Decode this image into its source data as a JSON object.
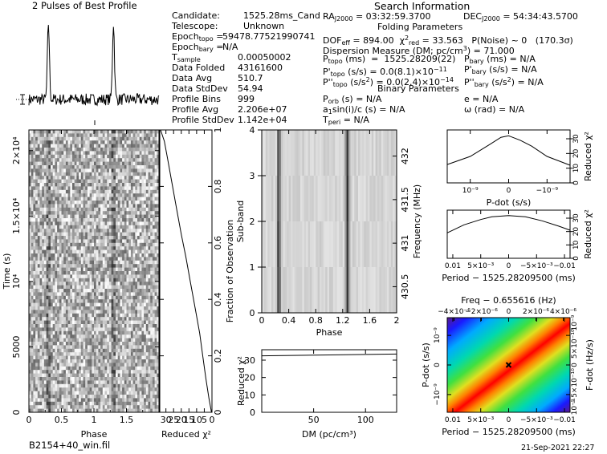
{
  "top_left_title": "2 Pulses of Best Profile",
  "candidate_info": {
    "lines": [
      [
        "Candidate:",
        "1525.28ms_Cand"
      ],
      [
        "Telescope:",
        "Unknown"
      ],
      [
        "Epoch_topo =",
        "59478.77521990741"
      ],
      [
        "Epoch_bary =",
        "N/A"
      ],
      [
        "T_sample",
        "0.00050002"
      ],
      [
        "Data Folded",
        "43161600"
      ],
      [
        "Data Avg",
        "510.7"
      ],
      [
        "Data StdDev",
        "54.94"
      ],
      [
        "Profile Bins",
        "999"
      ],
      [
        "Profile Avg",
        "2.206e+07"
      ],
      [
        "Profile StdDev",
        "1.142e+04"
      ]
    ]
  },
  "search": {
    "title": "Search Information",
    "ra": "RA_J2000 = 03:32:59.3700",
    "dec": "DEC_J2000 = 54:34:43.5700",
    "folding_title": "Folding Parameters",
    "dof_line": "DOF_eff = 894.00  χ²_red = 33.563   P(Noise) ~ 0   (170.3σ)",
    "dm_line": "Dispersion Measure (DM; pc/cm³) = 71.000",
    "p_topo": "P_topo (ms) = 1525.28209(22)",
    "pd_topo": "P'_topo (s/s) = 0.0(8.1)×10⁻¹¹",
    "pdd_topo": "P''_topo (s/s²) = 0.0(2.4)×10⁻¹⁴",
    "p_bary": "P_bary (ms) = N/A",
    "pd_bary": "P'_bary (s/s) = N/A",
    "pdd_bary": "P''_bary (s/s²) = N/A",
    "binary_title": "Binary Parameters",
    "porb": "P_orb (s) = N/A",
    "asini": "a₁sin(i)/c (s) = N/A",
    "tperi": "T_peri = N/A",
    "e": "e = N/A",
    "omega": "ω (rad) = N/A"
  },
  "footer": {
    "filename": "B2154+40_win.fil",
    "date": "21-Sep-2021  22:27"
  },
  "labels": {
    "time_axis": "Time (s)",
    "phase": "Phase",
    "reduced_chi2": "Reduced χ²",
    "fraction_obs": "Fraction of Observation",
    "subband": "Sub-band",
    "frequency": "Frequency (MHz)",
    "dm_axis": "DM (pc/cm³)",
    "pdot_axis": "P-dot (s/s)",
    "period_axis": "Period − 1525.28209500 (ms)",
    "freq_axis": "Freq − 0.655616 (Hz)",
    "fdot_axis": "F-dot (Hz/s)"
  },
  "ticks": {
    "time": [
      "0",
      "5000",
      "10⁴",
      "1.5×10⁴",
      "2×10⁴"
    ],
    "phase_main": [
      "0",
      "0.5",
      "1",
      "1.5"
    ],
    "chi2_bottom": [
      "30",
      "25",
      "20",
      "15",
      "10",
      "5",
      "0"
    ],
    "fraction": [
      "0",
      "0.2",
      "0.4",
      "0.6",
      "0.8",
      "1"
    ],
    "subband": [
      "0",
      "1",
      "2",
      "3",
      "4"
    ],
    "freq": [
      "430.5",
      "431",
      "431.5",
      "432"
    ],
    "phase_sub": [
      "0",
      "0.4",
      "0.8",
      "1.2",
      "1.6",
      "2"
    ],
    "dm_chi2_y": [
      "0",
      "10",
      "20",
      "30"
    ],
    "dm_x": [
      "50",
      "100"
    ],
    "pdot_x": [
      "10⁻⁹",
      "0",
      "−10⁻⁹"
    ],
    "chi2_small": [
      "0",
      "10",
      "20",
      "30"
    ],
    "period_x": [
      "0.01",
      "5×10⁻³",
      "0",
      "−5×10⁻³",
      "−0.01"
    ],
    "freq_top": [
      "−4×10⁻⁶",
      "−2×10⁻⁶",
      "0",
      "2×10⁻⁶",
      "4×10⁻⁶"
    ],
    "pdot_y": [
      "10⁻⁹",
      "0",
      "−10⁻⁹"
    ],
    "fdot_y": [
      "10⁻⁹",
      "5×10⁻¹⁰",
      "0",
      "−5×10⁻¹⁰",
      "10⁻⁹"
    ]
  },
  "chart_data": [
    {
      "type": "line",
      "name": "profile",
      "title": "2 Pulses of Best Profile",
      "x_range": [
        0,
        2
      ],
      "peaks_phase": [
        0.3,
        1.3
      ],
      "peak_relative_height": 6.5
    },
    {
      "type": "heatmap",
      "name": "time-vs-phase",
      "xlabel": "Phase",
      "ylabel": "Time (s)",
      "xlim": [
        0,
        2
      ],
      "ylim": [
        0,
        21580
      ],
      "pulse_phases": [
        0.3,
        1.3
      ]
    },
    {
      "type": "line",
      "name": "cumulative-chi2",
      "xlabel": "Reduced χ²",
      "ylabel": "Fraction of Observation",
      "xlim": [
        34,
        0
      ],
      "ylim": [
        0,
        1
      ],
      "points": [
        [
          0.3,
          0.0
        ],
        [
          2,
          0.05
        ],
        [
          4,
          0.12
        ],
        [
          6,
          0.2
        ],
        [
          8,
          0.28
        ],
        [
          11,
          0.37
        ],
        [
          14,
          0.46
        ],
        [
          17,
          0.55
        ],
        [
          20,
          0.63
        ],
        [
          23,
          0.72
        ],
        [
          26,
          0.81
        ],
        [
          29,
          0.9
        ],
        [
          31,
          0.96
        ],
        [
          33.5,
          1.0
        ]
      ]
    },
    {
      "type": "heatmap",
      "name": "subband-vs-phase",
      "xlabel": "Phase",
      "ylabel": "Sub-band",
      "xlim": [
        0,
        2
      ],
      "ylim": [
        0,
        4
      ],
      "freq_range_mhz": [
        430.2,
        432.3
      ],
      "pulse_phases": [
        0.25,
        1.27
      ]
    },
    {
      "type": "line",
      "name": "dm-chi2",
      "xlabel": "DM (pc/cm³)",
      "ylabel": "Reduced χ²",
      "xlim": [
        0,
        130
      ],
      "ylim": [
        0,
        36
      ],
      "points": [
        [
          0,
          32.5
        ],
        [
          65,
          33.0
        ],
        [
          130,
          33.5
        ]
      ]
    },
    {
      "type": "line",
      "name": "pdot-chi2",
      "xlabel": "P-dot (s/s)",
      "ylabel": "Reduced χ²",
      "xlim": [
        1.6e-09,
        -1.6e-09
      ],
      "ylim": [
        0,
        36
      ],
      "points": [
        [
          1.6e-09,
          12.5
        ],
        [
          1e-09,
          18
        ],
        [
          5e-10,
          26
        ],
        [
          2e-10,
          31
        ],
        [
          0,
          32
        ],
        [
          -3e-10,
          29
        ],
        [
          -6e-10,
          25
        ],
        [
          -1e-09,
          18
        ],
        [
          -1.3e-09,
          15
        ],
        [
          -1.6e-09,
          12
        ]
      ]
    },
    {
      "type": "line",
      "name": "period-chi2",
      "xlabel": "Period − 1525.28209500 (ms)",
      "ylabel": "Reduced χ²",
      "xlim": [
        0.011,
        -0.011
      ],
      "ylim": [
        0,
        36
      ],
      "points": [
        [
          0.011,
          19
        ],
        [
          0.008,
          25
        ],
        [
          0.005,
          29
        ],
        [
          0.003,
          31
        ],
        [
          0,
          32
        ],
        [
          -0.003,
          31
        ],
        [
          -0.006,
          28
        ],
        [
          -0.009,
          24
        ],
        [
          -0.011,
          21
        ]
      ]
    },
    {
      "type": "heatmap",
      "name": "p-pdot-plane",
      "xlabel": "Period − 1525.28209500 (ms)",
      "ylabel": "P-dot (s/s)",
      "x2label": "Freq − 0.655616 (Hz)",
      "y2label": "F-dot (Hz/s)",
      "xlim": [
        0.011,
        -0.011
      ],
      "ylim": [
        -1.6e-09,
        1.6e-09
      ],
      "best_fit": [
        0,
        0
      ]
    }
  ]
}
